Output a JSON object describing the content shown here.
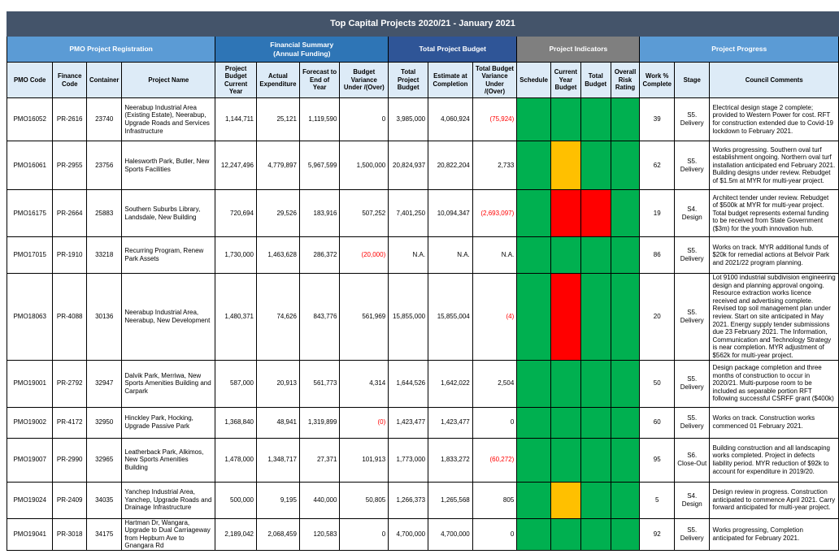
{
  "title": "Top Capital Projects 2020/21 - January 2021",
  "groups": {
    "pmo": "PMO Project Registration",
    "financial": "Financial Summary (Annual Funding)",
    "budget": "Total Project Budget",
    "indicators": "Project Indicators",
    "progress": "Project Progress"
  },
  "columns": [
    "PMO Code",
    "Finance Code",
    "Container",
    "Project Name",
    "Project Budget Current Year",
    "Actual Expenditure",
    "Forecast to End of Year",
    "Budget Variance Under /(Over)",
    "Total Project Budget",
    "Estimate at Completion",
    "Total Budget Variance Under /(Over)",
    "Schedule",
    "Current Year Budget",
    "Total Budget",
    "Overall Risk Rating",
    "Work % Complete",
    "Stage",
    "Council Comments"
  ],
  "colors": {
    "green": "#00b050",
    "amber": "#ffc000",
    "red": "#ff0000",
    "header_dark": "#44546a"
  },
  "rows": [
    {
      "pmo": "PMO16052",
      "fin": "PR-2616",
      "cont": "23740",
      "name": "Neerabup Industrial Area (Existing Estate), Neerabup, Upgrade Roads and Services Infrastructure",
      "budget_cy": "1,144,711",
      "actual": "25,121",
      "forecast": "1,119,590",
      "variance": "0",
      "total_budget": "3,985,000",
      "eac": "4,060,924",
      "total_var": "(75,924)",
      "ind": [
        "G",
        "G",
        "G",
        "G"
      ],
      "pct": "39",
      "stage": "S5. Delivery",
      "comment": "Electrical design stage 2 complete; provided to Western Power for cost. RFT for construction extended due to Covid-19 lockdown to February 2021."
    },
    {
      "pmo": "PMO16061",
      "fin": "PR-2955",
      "cont": "23756",
      "name": "Halesworth Park, Butler, New Sports Facilities",
      "budget_cy": "12,247,496",
      "actual": "4,779,897",
      "forecast": "5,967,599",
      "variance": "1,500,000",
      "total_budget": "20,824,937",
      "eac": "20,822,204",
      "total_var": "2,733",
      "ind": [
        "G",
        "Y",
        "G",
        "G"
      ],
      "pct": "62",
      "stage": "S5. Delivery",
      "comment": "Works progressing. Southern oval turf establishment ongoing. Northern oval turf installation anticipated end February 2021. Building designs under review. Rebudget of $1.5m at MYR for multi-year project."
    },
    {
      "pmo": "PMO16175",
      "fin": "PR-2664",
      "cont": "25883",
      "name": "Southern Suburbs Library, Landsdale, New Building",
      "budget_cy": "720,694",
      "actual": "29,526",
      "forecast": "183,916",
      "variance": "507,252",
      "total_budget": "7,401,250",
      "eac": "10,094,347",
      "total_var": "(2,693,097)",
      "ind": [
        "G",
        "R",
        "R",
        "G"
      ],
      "pct": "19",
      "stage": "S4. Design",
      "comment": "Architect tender under review. Rebudget of $500k at MYR for multi-year project. Total budget represents external funding to be received from State Government ($3m) for the youth innovation hub."
    },
    {
      "pmo": "PMO17015",
      "fin": "PR-1910",
      "cont": "33218",
      "name": "Recurring Program, Renew Park Assets",
      "budget_cy": "1,730,000",
      "actual": "1,463,628",
      "forecast": "286,372",
      "variance": "(20,000)",
      "total_budget": "N.A.",
      "eac": "N.A.",
      "total_var": "N.A.",
      "ind": [
        "G",
        "G",
        "G",
        "G"
      ],
      "pct": "86",
      "stage": "S5. Delivery",
      "comment": "Works on track. MYR additional funds of $20k for remedial actions at Belvoir Park and 2021/22 program planning."
    },
    {
      "pmo": "PMO18063",
      "fin": "PR-4088",
      "cont": "30136",
      "name": "Neerabup Industrial Area, Neerabup, New Development",
      "budget_cy": "1,480,371",
      "actual": "74,626",
      "forecast": "843,776",
      "variance": "561,969",
      "total_budget": "15,855,000",
      "eac": "15,855,004",
      "total_var": "(4)",
      "ind": [
        "G",
        "R",
        "G",
        "G"
      ],
      "pct": "20",
      "stage": "S5. Delivery",
      "comment": "Lot 9100 industrial subdivision engineering design and planning approval ongoing. Resource extraction works licence received and advertising complete. Revised top soil management plan under review. Start on site anticipated in May 2021. Energy supply tender submissions due 23 February 2021. The Information, Communication and Technology Strategy is near completion. MYR adjustment of $562k for multi-year project."
    },
    {
      "pmo": "PMO19001",
      "fin": "PR-2792",
      "cont": "32947",
      "name": "Dalvik Park, Merriwa, New Sports Amenities Building and Carpark",
      "budget_cy": "587,000",
      "actual": "20,913",
      "forecast": "561,773",
      "variance": "4,314",
      "total_budget": "1,644,526",
      "eac": "1,642,022",
      "total_var": "2,504",
      "ind": [
        "G",
        "G",
        "G",
        "G"
      ],
      "pct": "50",
      "stage": "S5. Delivery",
      "comment": "Design package completion and three months of construction to occur in 2020/21. Multi-purpose room to be included as separable portion RFT following successful CSRFF grant ($400k)"
    },
    {
      "pmo": "PMO19002",
      "fin": "PR-4172",
      "cont": "32950",
      "name": "Hinckley Park, Hocking, Upgrade Passive Park",
      "budget_cy": "1,368,840",
      "actual": "48,941",
      "forecast": "1,319,899",
      "variance": "(0)",
      "total_budget": "1,423,477",
      "eac": "1,423,477",
      "total_var": "0",
      "ind": [
        "G",
        "G",
        "G",
        "G"
      ],
      "pct": "60",
      "stage": "S5. Delivery",
      "comment": "Works on track. Construction works commenced 01 February 2021."
    },
    {
      "pmo": "PMO19007",
      "fin": "PR-2990",
      "cont": "32965",
      "name": "Leatherback Park, Alkimos, New Sports Amenities Building",
      "budget_cy": "1,478,000",
      "actual": "1,348,717",
      "forecast": "27,371",
      "variance": "101,913",
      "total_budget": "1,773,000",
      "eac": "1,833,272",
      "total_var": "(60,272)",
      "ind": [
        "G",
        "G",
        "G",
        "G"
      ],
      "pct": "95",
      "stage": "S6. Close-Out",
      "comment": "Building construction and all landscaping works completed. Project in defects liability period. MYR reduction of $92k to account for expenditure in 2019/20."
    },
    {
      "pmo": "PMO19024",
      "fin": "PR-2409",
      "cont": "34035",
      "name": "Yanchep Industrial Area, Yanchep, Upgrade Roads and Drainage Infrastructure",
      "budget_cy": "500,000",
      "actual": "9,195",
      "forecast": "440,000",
      "variance": "50,805",
      "total_budget": "1,266,373",
      "eac": "1,265,568",
      "total_var": "805",
      "ind": [
        "G",
        "Y",
        "G",
        "G"
      ],
      "pct": "5",
      "stage": "S4. Design",
      "comment": "Design review in progress. Construction anticipated to commence April 2021. Carry forward anticipated for multi-year project."
    },
    {
      "pmo": "PMO19041",
      "fin": "PR-3018",
      "cont": "34175",
      "name": "Hartman Dr, Wangara, Upgrade to Dual Carriageway from Hepburn Ave to Gnangara Rd",
      "budget_cy": "2,189,042",
      "actual": "2,068,459",
      "forecast": "120,583",
      "variance": "0",
      "total_budget": "4,700,000",
      "eac": "4,700,000",
      "total_var": "0",
      "ind": [
        "G",
        "G",
        "G",
        "G"
      ],
      "pct": "92",
      "stage": "S5. Delivery",
      "comment": "Works progressing, Completion anticipated for February 2021."
    }
  ]
}
